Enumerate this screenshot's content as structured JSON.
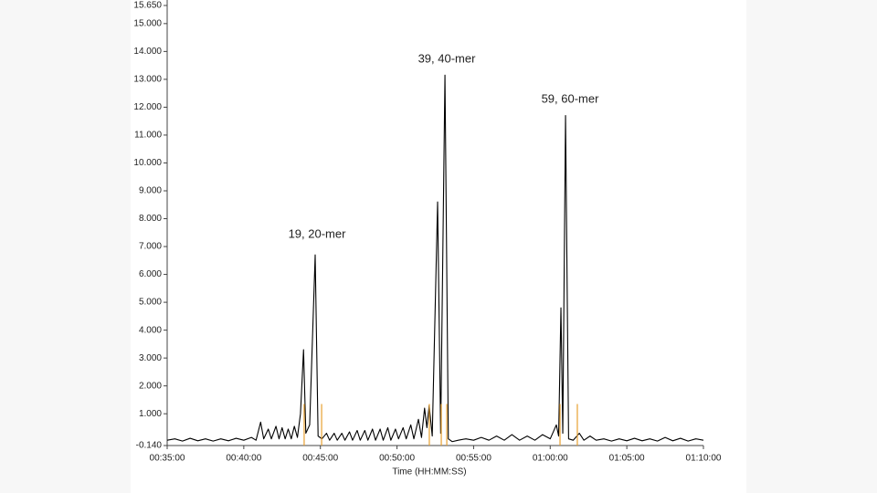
{
  "chart_data": {
    "type": "line",
    "x_label": "Time (HH:MM:SS)",
    "xlim": [
      35,
      70
    ],
    "xticks": [
      {
        "value": 35,
        "label": "00:35:00"
      },
      {
        "value": 40,
        "label": "00:40:00"
      },
      {
        "value": 45,
        "label": "00:45:00"
      },
      {
        "value": 50,
        "label": "00:50:00"
      },
      {
        "value": 55,
        "label": "00:55:00"
      },
      {
        "value": 60,
        "label": "01:00:00"
      },
      {
        "value": 65,
        "label": "01:05:00"
      },
      {
        "value": 70,
        "label": "01:10:00"
      }
    ],
    "ylim": [
      -0.14,
      15.65
    ],
    "yticks": [
      {
        "value": -0.14,
        "label": "-0.140"
      },
      {
        "value": 1,
        "label": "1.000"
      },
      {
        "value": 2,
        "label": "2.000"
      },
      {
        "value": 3,
        "label": "3.000"
      },
      {
        "value": 4,
        "label": "4.000"
      },
      {
        "value": 5,
        "label": "5.000"
      },
      {
        "value": 6,
        "label": "6.000"
      },
      {
        "value": 7,
        "label": "7.000"
      },
      {
        "value": 8,
        "label": "8.000"
      },
      {
        "value": 9,
        "label": "9.000"
      },
      {
        "value": 10,
        "label": "10.000"
      },
      {
        "value": 11,
        "label": "11.000"
      },
      {
        "value": 12,
        "label": "12.000"
      },
      {
        "value": 13,
        "label": "13.000"
      },
      {
        "value": 14,
        "label": "14.000"
      },
      {
        "value": 15,
        "label": "15.000"
      },
      {
        "value": 15.65,
        "label": "15.650"
      }
    ],
    "x": [
      35.0,
      35.5,
      36.0,
      36.5,
      37.0,
      37.5,
      38.0,
      38.5,
      39.0,
      39.5,
      40.0,
      40.5,
      40.8,
      41.1,
      41.3,
      41.6,
      41.8,
      42.1,
      42.3,
      42.5,
      42.7,
      42.9,
      43.1,
      43.3,
      43.5,
      43.7,
      43.9,
      44.05,
      44.3,
      44.66,
      44.85,
      45.1,
      45.4,
      45.6,
      45.9,
      46.1,
      46.4,
      46.6,
      46.9,
      47.1,
      47.4,
      47.6,
      47.9,
      48.1,
      48.4,
      48.6,
      48.9,
      49.1,
      49.4,
      49.6,
      49.9,
      50.1,
      50.4,
      50.6,
      50.9,
      51.1,
      51.4,
      51.6,
      51.8,
      51.95,
      52.1,
      52.3,
      52.65,
      52.85,
      53.13,
      53.35,
      53.6,
      54.0,
      54.5,
      55.0,
      55.5,
      56.0,
      56.5,
      57.0,
      57.5,
      58.0,
      58.5,
      59.0,
      59.5,
      60.0,
      60.4,
      60.55,
      60.7,
      60.82,
      61.0,
      61.2,
      61.5,
      61.9,
      62.2,
      62.6,
      63.0,
      63.5,
      64.0,
      64.5,
      65.0,
      65.5,
      66.0,
      66.5,
      67.0,
      67.5,
      68.0,
      68.5,
      69.0,
      69.5,
      70.0
    ],
    "series": [
      {
        "color": "#000000",
        "values": [
          0.05,
          0.1,
          0.02,
          0.12,
          0.03,
          0.1,
          0.02,
          0.1,
          0.03,
          0.12,
          0.05,
          0.15,
          0.05,
          0.7,
          0.1,
          0.45,
          0.1,
          0.55,
          0.1,
          0.5,
          0.1,
          0.45,
          0.1,
          0.55,
          0.15,
          1.0,
          3.3,
          0.3,
          0.6,
          6.7,
          0.2,
          0.1,
          0.3,
          0.05,
          0.3,
          0.05,
          0.3,
          0.05,
          0.35,
          0.05,
          0.4,
          0.05,
          0.4,
          0.05,
          0.45,
          0.05,
          0.45,
          0.05,
          0.5,
          0.05,
          0.45,
          0.1,
          0.5,
          0.1,
          0.6,
          0.1,
          0.8,
          0.15,
          1.2,
          0.5,
          1.3,
          0.2,
          8.6,
          0.3,
          13.15,
          0.1,
          0.0,
          0.05,
          0.1,
          0.05,
          0.15,
          0.05,
          0.2,
          0.05,
          0.25,
          0.05,
          0.2,
          0.05,
          0.25,
          0.1,
          0.6,
          0.2,
          4.8,
          0.3,
          11.7,
          0.1,
          0.05,
          0.3,
          0.05,
          0.2,
          0.05,
          0.1,
          0.02,
          0.1,
          0.03,
          0.12,
          0.03,
          0.1,
          0.02,
          0.15,
          0.03,
          0.12,
          0.02,
          0.1,
          0.05
        ]
      }
    ],
    "markers": {
      "color": "#e8a030",
      "top": 1.35,
      "x": [
        43.94,
        45.08,
        52.11,
        52.89,
        53.25,
        60.64,
        61.77
      ]
    },
    "annotations": [
      {
        "text": "19, 20-mer",
        "color": "#d03a3a"
      },
      {
        "text": "39, 40-mer",
        "color": "#d03a3a"
      },
      {
        "text": "59, 60-mer",
        "color": "#d03a3a"
      }
    ]
  }
}
